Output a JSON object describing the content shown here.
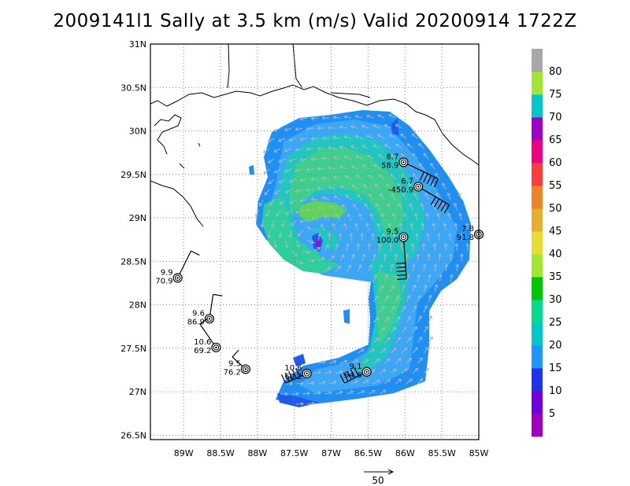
{
  "title": "2009141l1 Sally at 3.5 km (m/s) Valid 20200914 1722Z",
  "map": {
    "lon_range": [
      -89.45,
      -85.0
    ],
    "lat_range": [
      26.45,
      31.0
    ],
    "lon_ticks": [
      {
        "value": -89.0,
        "label": "89W"
      },
      {
        "value": -88.5,
        "label": "88.5W"
      },
      {
        "value": -88.0,
        "label": "88W"
      },
      {
        "value": -87.5,
        "label": "87.5W"
      },
      {
        "value": -87.0,
        "label": "87W"
      },
      {
        "value": -86.5,
        "label": "86.5W"
      },
      {
        "value": -86.0,
        "label": "86W"
      },
      {
        "value": -85.5,
        "label": "85.5W"
      },
      {
        "value": -85.0,
        "label": "85W"
      }
    ],
    "lat_ticks": [
      {
        "value": 31.0,
        "label": "31N"
      },
      {
        "value": 30.5,
        "label": "30.5N"
      },
      {
        "value": 30.0,
        "label": "30N"
      },
      {
        "value": 29.5,
        "label": "29.5N"
      },
      {
        "value": 29.0,
        "label": "29N"
      },
      {
        "value": 28.5,
        "label": "28.5N"
      },
      {
        "value": 28.0,
        "label": "28N"
      },
      {
        "value": 27.5,
        "label": "27.5N"
      },
      {
        "value": 27.0,
        "label": "27N"
      },
      {
        "value": 26.5,
        "label": "26.5N"
      }
    ],
    "grid": "dotted",
    "coastline_color": "#000000",
    "vector_color": "#b4b4b4"
  },
  "storm_center": {
    "lon": -87.3,
    "lat": 28.78
  },
  "stations": [
    {
      "id": "s1",
      "lon": -86.02,
      "lat": 29.64,
      "top": "8.7",
      "bottom": "58.9",
      "barb_to": [
        -85.55,
        29.45
      ],
      "flags": 2
    },
    {
      "id": "s2",
      "lon": -85.82,
      "lat": 29.36,
      "top": "6.7",
      "bottom": "-450.9",
      "barb_to": [
        -85.4,
        29.15
      ],
      "flags": 2
    },
    {
      "id": "s3",
      "lon": -86.02,
      "lat": 28.78,
      "top": "9.5",
      "bottom": "100.0",
      "barb_to": [
        -85.98,
        28.3
      ],
      "flags": 2
    },
    {
      "id": "s4",
      "lon": -85.0,
      "lat": 28.81,
      "top": "7.8",
      "bottom": "91.8",
      "barb_to": null,
      "flags": 0
    },
    {
      "id": "s5",
      "lon": -89.08,
      "lat": 28.31,
      "top": "9.9",
      "bottom": "70.9",
      "barb_to": [
        -88.9,
        28.62
      ],
      "flags": 0
    },
    {
      "id": "s6",
      "lon": -88.65,
      "lat": 27.84,
      "top": "9.6",
      "bottom": "86.9",
      "barb_to": [
        -88.6,
        28.12
      ],
      "flags": 0
    },
    {
      "id": "s7",
      "lon": -88.56,
      "lat": 27.51,
      "top": "10.6",
      "bottom": "69.2",
      "barb_to": [
        -88.78,
        27.78
      ],
      "flags": 0
    },
    {
      "id": "s8",
      "lon": -88.16,
      "lat": 27.26,
      "top": "9.5",
      "bottom": "76.2",
      "barb_to": [
        -88.34,
        27.4
      ],
      "flags": 0
    },
    {
      "id": "s9",
      "lon": -87.33,
      "lat": 27.21,
      "top": "10.6",
      "bottom": "60.2",
      "barb_to": [
        -87.62,
        27.1
      ],
      "flags": 2
    },
    {
      "id": "s10",
      "lon": -86.52,
      "lat": 27.23,
      "top": "9.1",
      "bottom": "94.6",
      "barb_to": [
        -86.82,
        27.1
      ],
      "flags": 2
    }
  ],
  "colorbar": {
    "colors": [
      "#a100c4",
      "#7000e0",
      "#2132f0",
      "#1e96ff",
      "#00c8c8",
      "#00dc8c",
      "#00c800",
      "#a0e632",
      "#e6dc32",
      "#e6af2d",
      "#f08228",
      "#fa3c3c",
      "#f00082",
      "#a000c8",
      "#00c8c8",
      "#a0e632",
      "#a8a8a8"
    ],
    "labels": [
      "5",
      "10",
      "15",
      "20",
      "25",
      "30",
      "35",
      "40",
      "45",
      "50",
      "55",
      "60",
      "65",
      "70",
      "75",
      "80"
    ]
  },
  "scale_vector": {
    "label": "50"
  }
}
